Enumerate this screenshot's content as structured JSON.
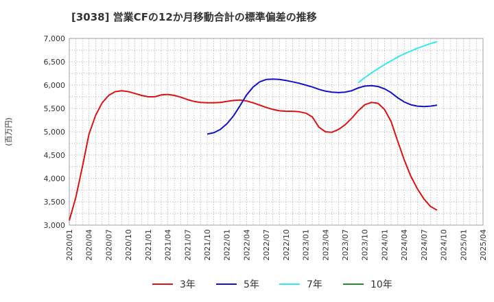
{
  "chart_data": {
    "type": "line",
    "title": "[3038]  営業CFの12か月移動合計の標準偏差の推移",
    "ylabel": "(百万円)",
    "xlabel": "",
    "ylim": [
      3000,
      7000
    ],
    "yticks": [
      3000,
      3500,
      4000,
      4500,
      5000,
      5500,
      6000,
      6500,
      7000
    ],
    "ytick_labels": [
      "3,000",
      "3,500",
      "4,000",
      "4,500",
      "5,000",
      "5,500",
      "6,000",
      "6,500",
      "7,000"
    ],
    "xticks": [
      "2020/01",
      "2020/04",
      "2020/07",
      "2020/10",
      "2021/01",
      "2021/04",
      "2021/07",
      "2021/10",
      "2022/01",
      "2022/04",
      "2022/07",
      "2022/10",
      "2023/01",
      "2023/04",
      "2023/07",
      "2023/10",
      "2024/01",
      "2024/04",
      "2024/07",
      "2024/10",
      "2025/01",
      "2025/04"
    ],
    "grid": true,
    "legend_position": "bottom",
    "series": [
      {
        "name": "3年",
        "color": "#dd1111",
        "x": [
          "2020/01",
          "2020/02",
          "2020/03",
          "2020/04",
          "2020/05",
          "2020/06",
          "2020/07",
          "2020/08",
          "2020/09",
          "2020/10",
          "2020/11",
          "2020/12",
          "2021/01",
          "2021/02",
          "2021/03",
          "2021/04",
          "2021/05",
          "2021/06",
          "2021/07",
          "2021/08",
          "2021/09",
          "2021/10",
          "2021/11",
          "2021/12",
          "2022/01",
          "2022/02",
          "2022/03",
          "2022/04",
          "2022/05",
          "2022/06",
          "2022/07",
          "2022/08",
          "2022/09",
          "2022/10",
          "2022/11",
          "2022/12",
          "2023/01",
          "2023/02",
          "2023/03",
          "2023/04",
          "2023/05",
          "2023/06",
          "2023/07",
          "2023/08",
          "2023/09",
          "2023/10",
          "2023/11",
          "2023/12",
          "2024/01",
          "2024/02",
          "2024/03",
          "2024/04",
          "2024/05",
          "2024/06",
          "2024/07",
          "2024/08",
          "2024/09",
          "2024/10"
        ],
        "values": [
          3100,
          3600,
          4250,
          4950,
          5350,
          5620,
          5780,
          5860,
          5880,
          5860,
          5820,
          5780,
          5750,
          5750,
          5790,
          5800,
          5780,
          5740,
          5690,
          5650,
          5630,
          5620,
          5620,
          5630,
          5650,
          5670,
          5680,
          5660,
          5620,
          5570,
          5520,
          5480,
          5450,
          5440,
          5440,
          5430,
          5400,
          5320,
          5100,
          5000,
          4990,
          5050,
          5150,
          5290,
          5450,
          5580,
          5630,
          5610,
          5480,
          5220,
          4800,
          4400,
          4050,
          3780,
          3560,
          3400,
          3320,
          null
        ]
      },
      {
        "name": "5年",
        "color": "#1111cc",
        "x": [
          "2021/10",
          "2021/11",
          "2021/12",
          "2022/01",
          "2022/02",
          "2022/03",
          "2022/04",
          "2022/05",
          "2022/06",
          "2022/07",
          "2022/08",
          "2022/09",
          "2022/10",
          "2022/11",
          "2022/12",
          "2023/01",
          "2023/02",
          "2023/03",
          "2023/04",
          "2023/05",
          "2023/06",
          "2023/07",
          "2023/08",
          "2023/09",
          "2023/10",
          "2023/11",
          "2023/12",
          "2024/01",
          "2024/02",
          "2024/03",
          "2024/04",
          "2024/05",
          "2024/06",
          "2024/07",
          "2024/08",
          "2024/09",
          "2024/10"
        ],
        "values": [
          4950,
          4980,
          5050,
          5170,
          5340,
          5560,
          5790,
          5960,
          6070,
          6120,
          6130,
          6120,
          6100,
          6070,
          6040,
          6000,
          5960,
          5910,
          5870,
          5850,
          5840,
          5850,
          5880,
          5940,
          5980,
          5990,
          5970,
          5920,
          5840,
          5730,
          5640,
          5580,
          5550,
          5540,
          5550,
          5570,
          null
        ]
      },
      {
        "name": "7年",
        "color": "#33e8ee",
        "x": [
          "2023/09",
          "2023/10",
          "2023/11",
          "2023/12",
          "2024/01",
          "2024/02",
          "2024/03",
          "2024/04",
          "2024/05",
          "2024/06",
          "2024/07",
          "2024/08",
          "2024/09",
          "2024/10"
        ],
        "values": [
          6050,
          6160,
          6260,
          6350,
          6440,
          6520,
          6600,
          6670,
          6730,
          6790,
          6840,
          6890,
          6930,
          null
        ]
      },
      {
        "name": "10年",
        "color": "#2a8a2a",
        "x": [],
        "values": []
      }
    ]
  }
}
